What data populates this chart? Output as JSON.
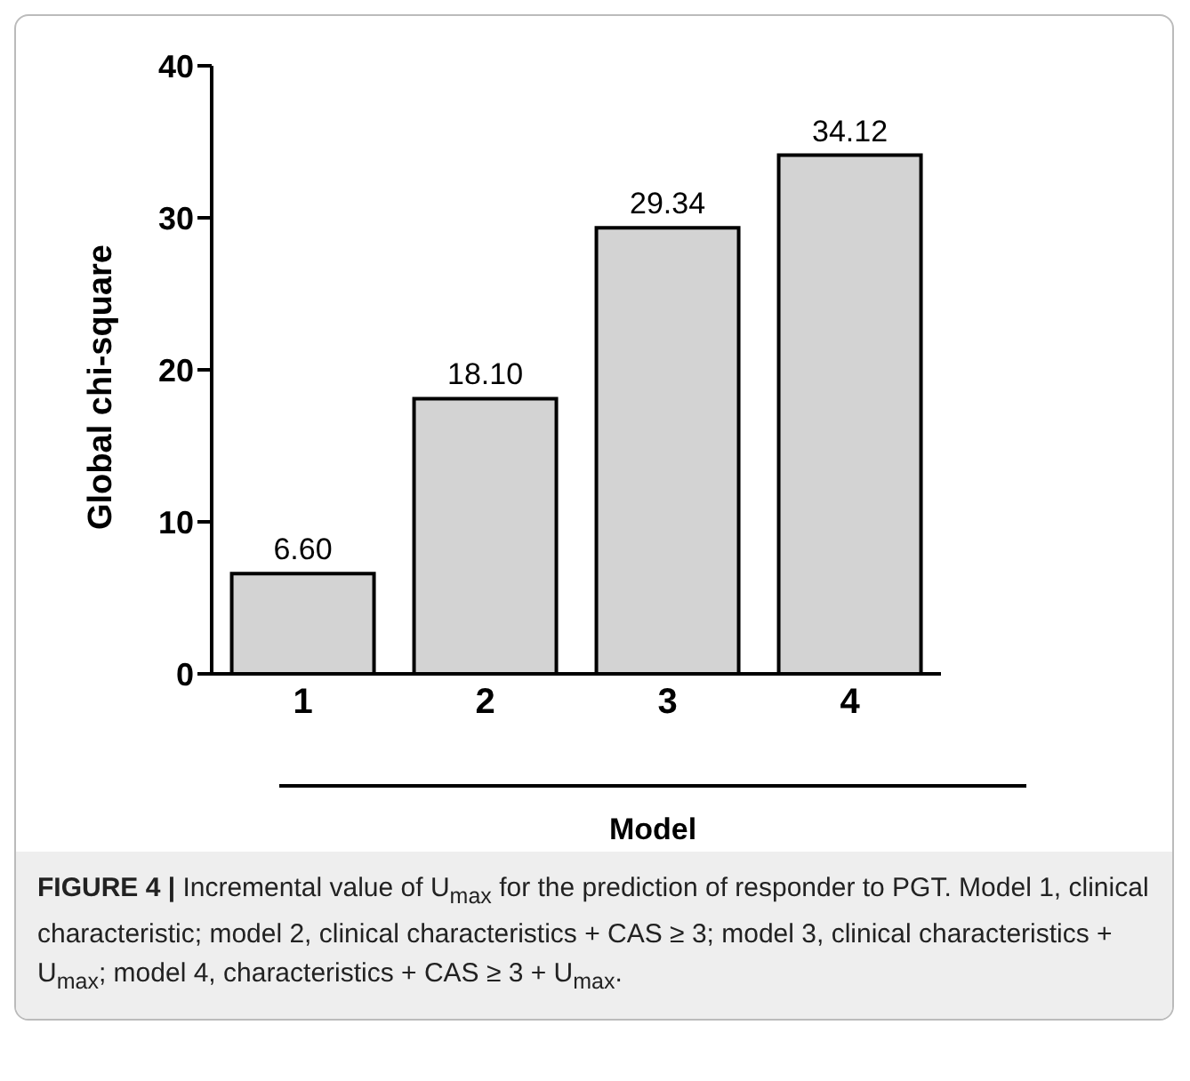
{
  "chart_data": {
    "type": "bar",
    "categories": [
      "1",
      "2",
      "3",
      "4"
    ],
    "values": [
      6.6,
      18.1,
      29.34,
      34.12
    ],
    "color": "#d3d3d3",
    "value_labels": [
      "6.60",
      "18.10",
      "29.34",
      "34.12"
    ],
    "xlabel": "Model",
    "ylabel": "Global chi-square",
    "ylim": [
      0,
      40
    ],
    "yticks": [
      0,
      10,
      20,
      30,
      40
    ],
    "grid": false,
    "legend": false,
    "annotations": [
      "FIGURE 4 | Incremental value of U$_{max}$ for the prediction of responder to PGT. Model 1, clinical characteristic; model 2, clinical characteristics + CAS ≥ 3; model 3, clinical characteristics + U$_{max}$; model 4, characteristics + CAS ≥ 3 + U$_{max}$."
    ]
  }
}
